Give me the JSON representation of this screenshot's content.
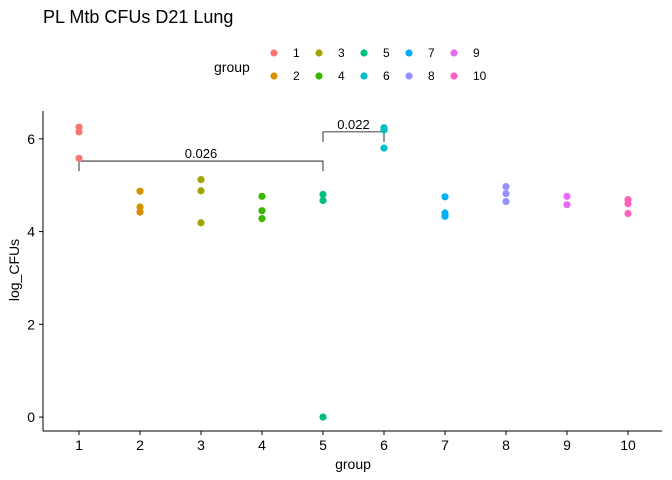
{
  "chart_data": {
    "type": "scatter",
    "title": "PL Mtb CFUs D21 Lung",
    "xlabel": "group",
    "ylabel": "log_CFUs",
    "legend_title": "group",
    "legend_position": "top",
    "grid": false,
    "categories": [
      "1",
      "2",
      "3",
      "4",
      "5",
      "6",
      "7",
      "8",
      "9",
      "10"
    ],
    "ylim": [
      -0.3,
      6.6
    ],
    "yticks": [
      0,
      2,
      4,
      6
    ],
    "series": [
      {
        "name": "1",
        "color": "#F8766D",
        "values": [
          6.25,
          6.15,
          5.58
        ]
      },
      {
        "name": "2",
        "color": "#D89000",
        "values": [
          4.87,
          4.53,
          4.42
        ]
      },
      {
        "name": "3",
        "color": "#A3A500",
        "values": [
          5.12,
          4.88,
          4.19
        ]
      },
      {
        "name": "4",
        "color": "#39B600",
        "values": [
          4.76,
          4.45,
          4.28
        ]
      },
      {
        "name": "5",
        "color": "#00BF7D",
        "values": [
          4.8,
          4.67,
          0.0
        ]
      },
      {
        "name": "6",
        "color": "#00BFC4",
        "values": [
          6.24,
          6.19,
          5.8
        ]
      },
      {
        "name": "7",
        "color": "#00B0F6",
        "values": [
          4.75,
          4.4,
          4.33
        ]
      },
      {
        "name": "8",
        "color": "#9590FF",
        "values": [
          4.97,
          4.82,
          4.65
        ]
      },
      {
        "name": "9",
        "color": "#E76BF3",
        "values": [
          4.76,
          4.58
        ]
      },
      {
        "name": "10",
        "color": "#FF62BC",
        "values": [
          4.69,
          4.6,
          4.39
        ]
      }
    ],
    "comparisons": [
      {
        "from": "1",
        "to": "5",
        "y": 5.52,
        "label": "0.026"
      },
      {
        "from": "5",
        "to": "6",
        "y": 6.15,
        "label": "0.022"
      }
    ]
  }
}
